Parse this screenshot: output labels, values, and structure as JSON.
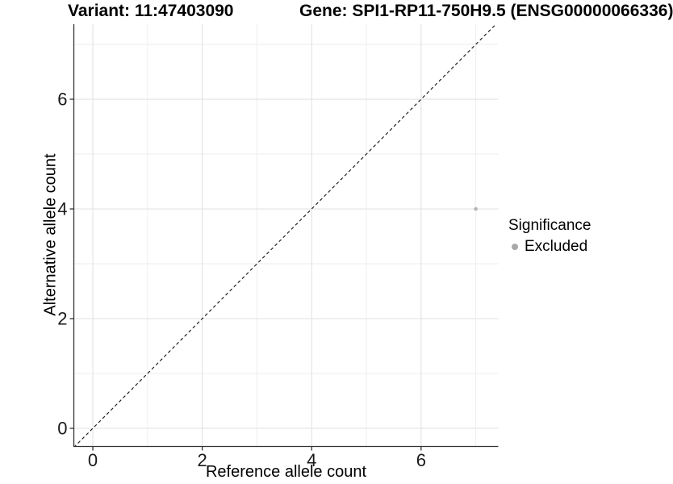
{
  "chart_data": {
    "type": "scatter",
    "title_variant": "Variant: 11:47403090",
    "title_gene": "Gene: SPI1-RP11-750H9.5 (ENSG00000066336)",
    "xlabel": "Reference allele count",
    "ylabel": "Alternative allele count",
    "xlim": [
      -0.347,
      7.411
    ],
    "ylim": [
      -0.331,
      7.368
    ],
    "x_major_ticks": [
      0,
      2,
      4,
      6
    ],
    "y_major_ticks": [
      0,
      2,
      4,
      6
    ],
    "x_minor_gridlines": [
      1,
      3,
      5,
      7
    ],
    "y_minor_gridlines": [
      1,
      3,
      5,
      7
    ],
    "grid": true,
    "identity_line": {
      "slope": 1,
      "intercept": 0,
      "style": "dashed",
      "color": "#111111"
    },
    "points": [
      {
        "x": 7,
        "y": 4,
        "significance": "Excluded"
      }
    ],
    "point_radius": 2.3,
    "legend": {
      "title": "Significance",
      "position": "right",
      "items": [
        {
          "label": "Excluded",
          "color": "#a8a8a8"
        }
      ]
    },
    "colors": {
      "point": "#b5b5b5",
      "axis": "#333333",
      "grid_major": "#e2e2e2",
      "grid_minor": "#eeeeee",
      "tick_text": "#1a1a1a"
    }
  }
}
